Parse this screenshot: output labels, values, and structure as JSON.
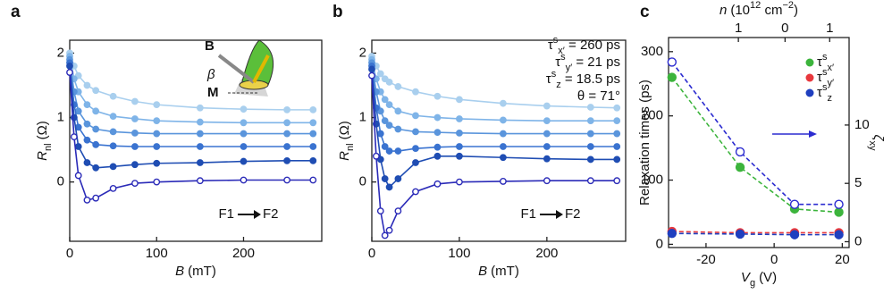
{
  "chart_data": [
    {
      "type": "line",
      "panel": "a",
      "xlabel": {
        "symbol": "B",
        "unit": "(mT)"
      },
      "ylabel": {
        "symbol": "R",
        "sub": "nl",
        "unit": "(Ω)"
      },
      "xlim": [
        0,
        290
      ],
      "ylim": [
        -0.92,
        2.2
      ],
      "xticks": [
        0,
        100,
        200
      ],
      "yticks": [
        0,
        1,
        2
      ],
      "x": [
        0,
        5,
        10,
        20,
        30,
        50,
        75,
        100,
        150,
        200,
        250,
        280
      ],
      "series": [
        {
          "color": "#a9cfee",
          "marker": "filled",
          "values": [
            2.0,
            1.8,
            1.65,
            1.5,
            1.42,
            1.33,
            1.25,
            1.2,
            1.15,
            1.13,
            1.12,
            1.12
          ]
        },
        {
          "color": "#7fb4e8",
          "marker": "filled",
          "values": [
            1.95,
            1.6,
            1.4,
            1.2,
            1.1,
            1.02,
            0.98,
            0.95,
            0.93,
            0.92,
            0.92,
            0.92
          ]
        },
        {
          "color": "#5a95dc",
          "marker": "filled",
          "values": [
            1.9,
            1.4,
            1.1,
            0.9,
            0.82,
            0.78,
            0.76,
            0.75,
            0.75,
            0.75,
            0.75,
            0.75
          ]
        },
        {
          "color": "#3a73d0",
          "marker": "filled",
          "values": [
            1.85,
            1.2,
            0.85,
            0.65,
            0.58,
            0.56,
            0.55,
            0.55,
            0.55,
            0.55,
            0.55,
            0.55
          ]
        },
        {
          "color": "#1f4db3",
          "marker": "filled",
          "values": [
            1.8,
            1.0,
            0.55,
            0.3,
            0.22,
            0.24,
            0.27,
            0.29,
            0.3,
            0.32,
            0.33,
            0.33
          ]
        },
        {
          "color": "#2b2bb8",
          "marker": "open",
          "values": [
            1.7,
            0.7,
            0.1,
            -0.28,
            -0.25,
            -0.1,
            -0.02,
            0.0,
            0.02,
            0.03,
            0.03,
            0.03
          ]
        }
      ],
      "annotations": [
        {
          "text": "F1"
        },
        {
          "text": "F2"
        }
      ],
      "inset_labels": [
        "B",
        "β",
        "M"
      ]
    },
    {
      "type": "line",
      "panel": "b",
      "xlabel": {
        "symbol": "B",
        "unit": "(mT)"
      },
      "ylabel": {
        "symbol": "R",
        "sub": "nl",
        "unit": "(Ω)"
      },
      "xlim": [
        0,
        290
      ],
      "ylim": [
        -0.92,
        2.2
      ],
      "xticks": [
        0,
        100,
        200
      ],
      "yticks": [
        0,
        1,
        2
      ],
      "x": [
        0,
        5,
        10,
        15,
        20,
        30,
        50,
        75,
        100,
        150,
        200,
        250,
        280
      ],
      "series": [
        {
          "color": "#a9cfee",
          "marker": "filled",
          "values": [
            1.95,
            1.8,
            1.68,
            1.6,
            1.55,
            1.48,
            1.4,
            1.33,
            1.28,
            1.22,
            1.18,
            1.16,
            1.15
          ]
        },
        {
          "color": "#7fb4e8",
          "marker": "filled",
          "values": [
            1.9,
            1.6,
            1.4,
            1.28,
            1.2,
            1.1,
            1.03,
            1.0,
            0.98,
            0.96,
            0.95,
            0.95,
            0.95
          ]
        },
        {
          "color": "#5a95dc",
          "marker": "filled",
          "values": [
            1.85,
            1.4,
            1.1,
            0.95,
            0.88,
            0.82,
            0.78,
            0.77,
            0.76,
            0.75,
            0.75,
            0.75,
            0.75
          ]
        },
        {
          "color": "#3a73d0",
          "marker": "filled",
          "values": [
            1.8,
            1.15,
            0.75,
            0.55,
            0.48,
            0.48,
            0.52,
            0.54,
            0.55,
            0.55,
            0.55,
            0.55,
            0.55
          ]
        },
        {
          "color": "#1f4db3",
          "marker": "filled",
          "values": [
            1.75,
            0.9,
            0.35,
            0.05,
            -0.08,
            0.05,
            0.3,
            0.4,
            0.4,
            0.38,
            0.36,
            0.35,
            0.35
          ]
        },
        {
          "color": "#2b2bb8",
          "marker": "open",
          "values": [
            1.65,
            0.4,
            -0.45,
            -0.83,
            -0.75,
            -0.45,
            -0.15,
            -0.03,
            0.0,
            0.01,
            0.02,
            0.02,
            0.02
          ]
        }
      ],
      "annotations": [
        {
          "text": "F1"
        },
        {
          "text": "F2"
        }
      ],
      "fit_parameters": [
        {
          "symbol": "τ",
          "sup": "s",
          "sub": "x′",
          "text": " = 260 ps"
        },
        {
          "symbol": "τ",
          "sup": "s",
          "sub": "y′",
          "text": " = 21 ps"
        },
        {
          "symbol": "τ",
          "sup": "s",
          "sub": "z",
          "text": " = 18.5 ps"
        },
        {
          "text": "θ = 71°"
        }
      ]
    },
    {
      "type": "line",
      "panel": "c",
      "linestyle": "dashed",
      "xlabel": {
        "symbol": "V",
        "sub": "g",
        "unit": "(V)"
      },
      "ylabel": {
        "text": "Relaxation times (ps)"
      },
      "y2label": {
        "symbol": "ζ",
        "sub": "xy"
      },
      "x2label": {
        "symbol": "n",
        "open": "(10",
        "sup": "12",
        "mid": " cm",
        "sup2": "−2",
        "close": ")"
      },
      "xlim": [
        -31,
        22
      ],
      "ylim": [
        -5,
        322
      ],
      "y2lim": [
        -0.5,
        17.5
      ],
      "xticks": [
        -20,
        0,
        20
      ],
      "yticks": [
        0,
        100,
        200,
        300
      ],
      "y2ticks": [
        0,
        5,
        10
      ],
      "x2ticks": [
        {
          "value": -10.5,
          "label": "1"
        },
        {
          "value": 3.2,
          "label": "0"
        },
        {
          "value": 16.3,
          "label": "1"
        }
      ],
      "x": [
        -30,
        -10,
        6,
        19
      ],
      "series": [
        {
          "name": "τ",
          "sup": "s",
          "sub": "x′",
          "color": "#3cb43c",
          "marker": "filled",
          "values": [
            260,
            120,
            55,
            50
          ]
        },
        {
          "name": "τ",
          "sup": "s",
          "sub": "y′",
          "color": "#e8383d",
          "marker": "filled",
          "values": [
            20,
            18,
            18,
            18
          ]
        },
        {
          "name": "τ",
          "sup": "s",
          "sub": "z",
          "color": "#1f3fbf",
          "marker": "filled",
          "values": [
            17,
            16,
            15,
            15
          ]
        },
        {
          "color": "#2b2bd0",
          "marker": "open",
          "axis": "y2",
          "values": [
            15.4,
            7.7,
            3.2,
            3.2
          ]
        }
      ]
    }
  ]
}
